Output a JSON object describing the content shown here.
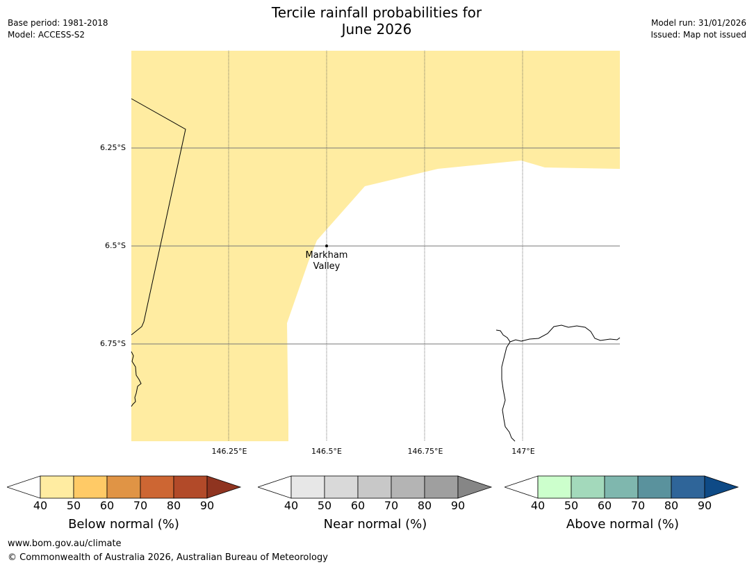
{
  "header": {
    "title_line1": "Tercile rainfall probabilities for",
    "title_line2": "June 2026",
    "base_period": "Base period: 1981-2018",
    "model": "Model: ACCESS-S2",
    "model_run": "Model run: 31/01/2026",
    "issued": "Issued: Map not issued"
  },
  "map": {
    "lat_labels": [
      "6.25°S",
      "6.5°S",
      "6.75°S"
    ],
    "lon_labels": [
      "146.25°E",
      "146.5°E",
      "146.75°E",
      "147°E"
    ],
    "place": {
      "name_line1": "Markham",
      "name_line2": "Valley"
    },
    "fill_color": "#ffeca1"
  },
  "legends": [
    {
      "title": "Below normal (%)",
      "ticks": [
        "40",
        "50",
        "60",
        "70",
        "80",
        "90"
      ],
      "colors": [
        "#ffeca1",
        "#ffca66",
        "#e09445",
        "#cd6633",
        "#b24a29",
        "#8f3420"
      ]
    },
    {
      "title": "Near normal (%)",
      "ticks": [
        "40",
        "50",
        "60",
        "70",
        "80",
        "90"
      ],
      "colors": [
        "#e7e7e7",
        "#d9d9d9",
        "#c8c8c8",
        "#b4b4b4",
        "#9f9f9f",
        "#868686"
      ]
    },
    {
      "title": "Above normal (%)",
      "ticks": [
        "40",
        "50",
        "60",
        "70",
        "80",
        "90"
      ],
      "colors": [
        "#ccffcc",
        "#a3d9bb",
        "#7fb7ae",
        "#5a929d",
        "#2f6599",
        "#0e4a86"
      ]
    }
  ],
  "footer": {
    "url": "www.bom.gov.au/climate",
    "copyright": "© Commonwealth of Australia 2026, Australian Bureau of Meteorology"
  }
}
